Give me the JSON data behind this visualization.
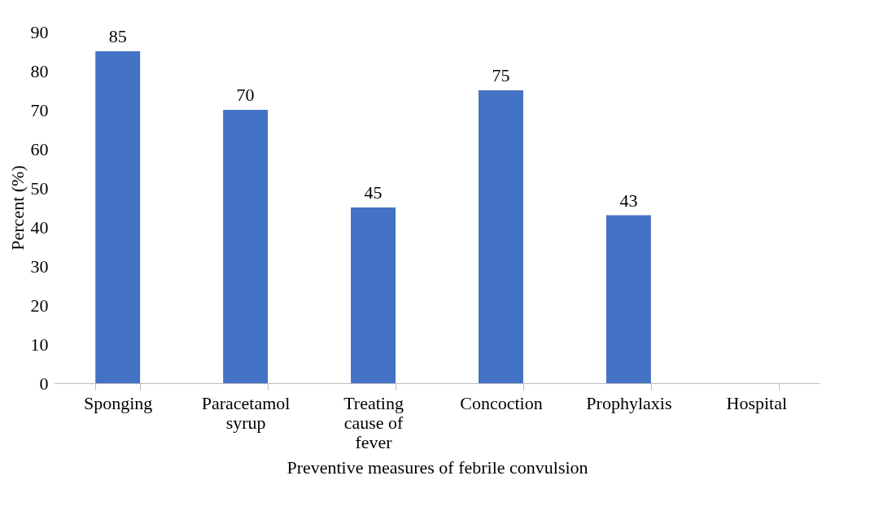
{
  "chart_data": {
    "type": "bar",
    "xlabel": "Preventive measures of febrile convulsion",
    "ylabel": "Percent (%)",
    "categories": [
      "Sponging",
      "Paracetamol syrup",
      "Treating cause of fever",
      "Concoction",
      "Prophylaxis",
      "Hospital"
    ],
    "values": [
      85,
      70,
      45,
      75,
      43,
      null
    ],
    "color": "#4472c4",
    "ylim": [
      0,
      90
    ],
    "yticks": [
      0,
      10,
      20,
      30,
      40,
      50,
      60,
      70,
      80,
      90
    ],
    "grid": false,
    "data_labels": true
  }
}
